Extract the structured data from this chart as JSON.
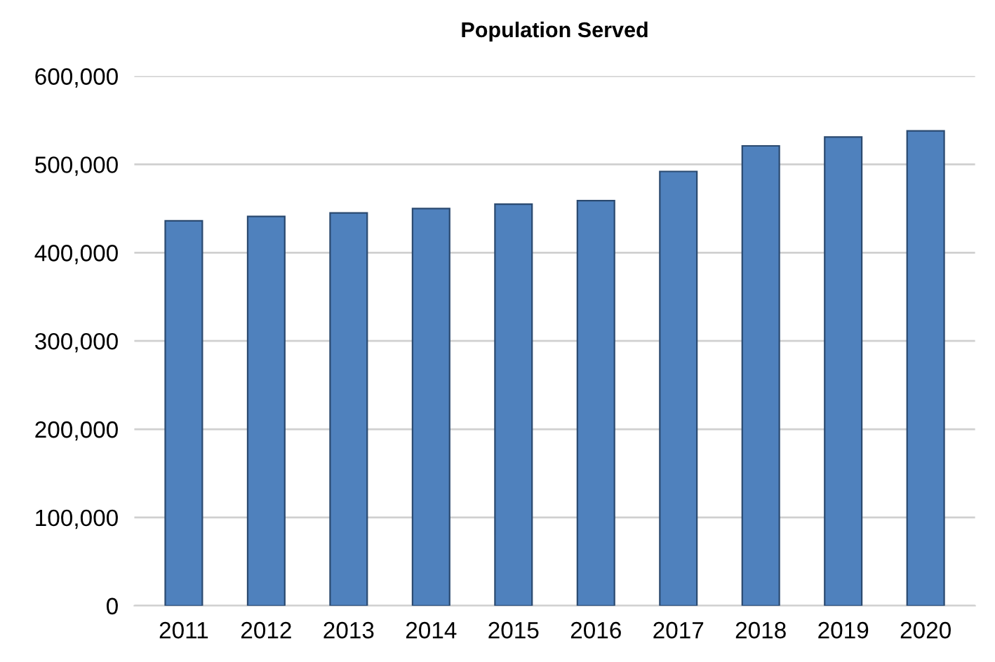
{
  "chart_data": {
    "type": "bar",
    "title": "Population Served",
    "categories": [
      "2011",
      "2012",
      "2013",
      "2014",
      "2015",
      "2016",
      "2017",
      "2018",
      "2019",
      "2020"
    ],
    "values": [
      436000,
      441000,
      445000,
      450000,
      455000,
      459000,
      492000,
      521000,
      531000,
      538000
    ],
    "color": "#4f81bd",
    "ylim": [
      0,
      600000
    ],
    "yticks": [
      {
        "value": 0,
        "label": "0"
      },
      {
        "value": 100000,
        "label": "100,000"
      },
      {
        "value": 200000,
        "label": "200,000"
      },
      {
        "value": 300000,
        "label": "300,000"
      },
      {
        "value": 400000,
        "label": "400,000"
      },
      {
        "value": 500000,
        "label": "500,000"
      },
      {
        "value": 600000,
        "label": "600,000"
      }
    ],
    "grid": "y",
    "legend": false
  }
}
